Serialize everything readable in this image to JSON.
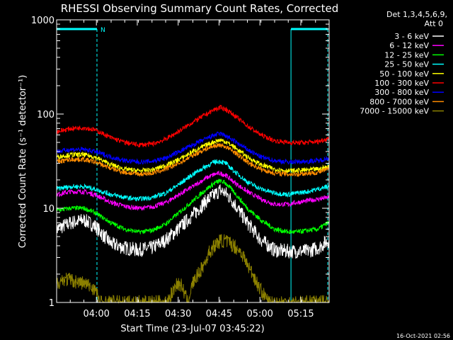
{
  "chart_data": {
    "type": "line",
    "title": "RHESSI Observing Summary Count Rates, Corrected",
    "xlabel": "Start Time (23-Jul-07 03:45:22)",
    "ylabel": "Corrected Count Rate (s⁻¹ detector⁻¹)",
    "ylim": [
      1,
      1000
    ],
    "yscale": "log",
    "xlim_minutes": [
      0,
      100
    ],
    "x_unit": "minutes after start time",
    "x_ticks": [
      {
        "label": "04:00",
        "minute": 14.6
      },
      {
        "label": "04:15",
        "minute": 29.6
      },
      {
        "label": "04:30",
        "minute": 44.6
      },
      {
        "label": "04:45",
        "minute": 59.6
      },
      {
        "label": "05:00",
        "minute": 74.6
      },
      {
        "label": "05:15",
        "minute": 89.6
      }
    ],
    "y_ticks": [
      {
        "label": "1",
        "value": 1
      },
      {
        "label": "10",
        "value": 10
      },
      {
        "label": "100",
        "value": 100
      },
      {
        "label": "1000",
        "value": 1000
      }
    ],
    "legend_header": [
      "Det 1,3,4,5,6,9,",
      "Att 0"
    ],
    "legend_placement": "right",
    "timestamp": "16-Oct-2021 02:56",
    "night_marker_label": "N",
    "night_intervals": [
      [
        0,
        14.8
      ],
      [
        86,
        99.5
      ]
    ],
    "series": [
      {
        "name": "3 - 6 keV",
        "color": "#ffffff",
        "x": [
          0,
          5,
          10,
          14,
          20,
          25,
          30,
          35,
          40,
          45,
          50,
          55,
          58,
          60,
          62,
          65,
          70,
          75,
          80,
          85,
          88,
          92,
          96,
          99.5
        ],
        "y": [
          6,
          7,
          7.5,
          6.5,
          4.2,
          3.8,
          3.6,
          3.8,
          4.6,
          6.2,
          8.5,
          12,
          14,
          15.5,
          14.5,
          11.5,
          7,
          4.6,
          3.6,
          3.5,
          3.5,
          3.5,
          3.8,
          4.5
        ]
      },
      {
        "name": "6 - 12 keV",
        "color": "#ff00ff",
        "x": [
          0,
          5,
          10,
          14,
          20,
          25,
          30,
          35,
          40,
          45,
          50,
          55,
          58,
          60,
          62,
          65,
          70,
          75,
          80,
          85,
          88,
          92,
          96,
          99.5
        ],
        "y": [
          14,
          15,
          15,
          14,
          11.5,
          10.5,
          10,
          10.3,
          11.5,
          14,
          17,
          21,
          23,
          23.5,
          22.5,
          19,
          15,
          12.5,
          11,
          11,
          11.5,
          12,
          12.5,
          13
        ]
      },
      {
        "name": "12 - 25 keV",
        "color": "#00ff00",
        "x": [
          0,
          5,
          10,
          14,
          20,
          25,
          30,
          35,
          40,
          45,
          50,
          55,
          58,
          60,
          62,
          65,
          70,
          75,
          80,
          85,
          88,
          92,
          96,
          99.5
        ],
        "y": [
          9.5,
          10,
          10,
          9,
          7,
          6,
          5.6,
          5.8,
          6.8,
          9,
          12,
          16,
          18.5,
          19.5,
          18.5,
          15,
          10,
          7.5,
          6,
          5.6,
          5.6,
          5.8,
          6,
          7
        ]
      },
      {
        "name": "25 - 50 keV",
        "color": "#00ffff",
        "x": [
          0,
          5,
          10,
          14,
          20,
          25,
          30,
          35,
          40,
          45,
          50,
          55,
          58,
          60,
          62,
          65,
          70,
          75,
          80,
          85,
          88,
          92,
          96,
          99.5
        ],
        "y": [
          16,
          17,
          17,
          16,
          14,
          13,
          12.5,
          13,
          14.5,
          18,
          23,
          28,
          31,
          31.5,
          30,
          25,
          19,
          16,
          14.5,
          14,
          14.5,
          15,
          16,
          17
        ]
      },
      {
        "name": "50 - 100 keV",
        "color": "#ffff00",
        "x": [
          0,
          5,
          10,
          14,
          20,
          25,
          30,
          35,
          40,
          45,
          50,
          55,
          58,
          60,
          62,
          65,
          70,
          75,
          80,
          85,
          88,
          92,
          96,
          99.5
        ],
        "y": [
          35,
          37,
          37,
          35,
          29,
          26,
          25,
          25.5,
          28.5,
          33,
          40,
          47,
          51,
          53,
          51,
          45,
          35,
          29,
          26,
          25,
          25,
          25.5,
          26,
          27.5
        ]
      },
      {
        "name": "100 - 300 keV",
        "color": "#ff0000",
        "x": [
          0,
          5,
          10,
          14,
          20,
          25,
          30,
          35,
          40,
          45,
          50,
          55,
          58,
          60,
          62,
          65,
          70,
          75,
          80,
          85,
          88,
          92,
          96,
          99.5
        ],
        "y": [
          65,
          70,
          72,
          68,
          56,
          50,
          47,
          48,
          54,
          66,
          82,
          100,
          112,
          117,
          113,
          98,
          75,
          60,
          52,
          50,
          49.5,
          50,
          51,
          55
        ]
      },
      {
        "name": "300 - 800 keV",
        "color": "#0000ff",
        "x": [
          0,
          5,
          10,
          14,
          20,
          25,
          30,
          35,
          40,
          45,
          50,
          55,
          58,
          60,
          62,
          65,
          70,
          75,
          80,
          85,
          88,
          92,
          96,
          99.5
        ],
        "y": [
          40,
          42,
          42,
          40,
          35,
          32,
          31,
          31.5,
          34,
          40,
          47,
          55,
          60,
          62,
          59,
          52,
          42,
          35,
          32,
          31,
          31,
          31.5,
          32,
          34
        ]
      },
      {
        "name": "800 - 7000 keV",
        "color": "#ff8c00",
        "x": [
          0,
          5,
          10,
          14,
          20,
          25,
          30,
          35,
          40,
          45,
          50,
          55,
          58,
          60,
          62,
          65,
          70,
          75,
          80,
          85,
          88,
          92,
          96,
          99.5
        ],
        "y": [
          31,
          33,
          33,
          31,
          26.5,
          24,
          23,
          23.5,
          26,
          30,
          36.5,
          43,
          46,
          47,
          45,
          40,
          31,
          26,
          23.5,
          23,
          23,
          23.5,
          24,
          26
        ]
      },
      {
        "name": "7000 - 15000 keV",
        "color": "#8b8000",
        "x": [
          0,
          3,
          6,
          10,
          14,
          16,
          20,
          25,
          30,
          35,
          38,
          40,
          42,
          44,
          46,
          48,
          50,
          52,
          54,
          56,
          58,
          60,
          62,
          64,
          66,
          68,
          70,
          72,
          74,
          76,
          78,
          80,
          85,
          90,
          95,
          99.5
        ],
        "y": [
          1.6,
          1.8,
          1.7,
          1.6,
          1.4,
          1.0,
          1.0,
          1.0,
          1.0,
          1.0,
          1.0,
          1.0,
          1.2,
          1.6,
          1.5,
          1.0,
          1.6,
          2.0,
          2.5,
          3.4,
          4.0,
          4.5,
          4.5,
          4.2,
          3.8,
          3.3,
          2.5,
          2.0,
          1.5,
          1.2,
          1.0,
          1.0,
          1.0,
          1.0,
          1.0,
          1.0
        ]
      }
    ]
  }
}
